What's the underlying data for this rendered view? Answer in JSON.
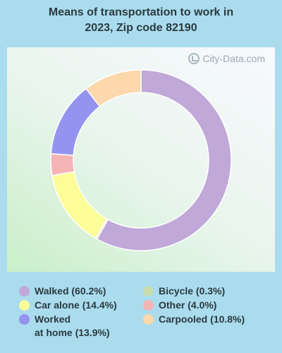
{
  "title": "Means of transportation to work in\n2023, Zip code 82190",
  "watermark": "City-Data.com",
  "chart_data": {
    "type": "pie",
    "donut": true,
    "title": "Means of transportation to work in 2023, Zip code 82190",
    "legend_position": "bottom",
    "slices": [
      {
        "label": "Walked",
        "value": 60.2,
        "color": "#c0a8d8",
        "legend": "Walked (60.2%)"
      },
      {
        "label": "Bicycle",
        "value": 0.3,
        "color": "#c8dcb0",
        "legend": "Bicycle (0.3%)"
      },
      {
        "label": "Car alone",
        "value": 14.4,
        "color": "#fcfc98",
        "legend": "Car alone (14.4%)"
      },
      {
        "label": "Other",
        "value": 4.0,
        "color": "#f4b4b4",
        "legend": "Other (4.0%)"
      },
      {
        "label": "Worked at home",
        "value": 13.9,
        "color": "#9494f0",
        "legend": "Worked\nat home (13.9%)"
      },
      {
        "label": "Carpooled",
        "value": 10.8,
        "color": "#fcd8ac",
        "legend": "Carpooled (10.8%)"
      }
    ]
  }
}
